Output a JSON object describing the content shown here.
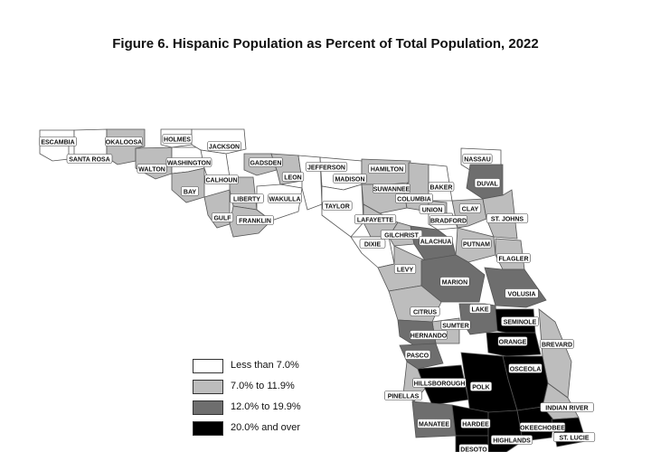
{
  "title": "Figure 6. Hispanic Population as Percent of Total Population, 2022",
  "colors": {
    "less_than_7": "#ffffff",
    "7_to_11_9": "#bdbdbd",
    "12_to_19_9": "#6e6e6e",
    "20_and_over": "#000000"
  },
  "legend": [
    {
      "label": "Less than 7.0%",
      "class": "less_than_7"
    },
    {
      "label": "7.0% to 11.9%",
      "class": "7_to_11_9"
    },
    {
      "label": "12.0% to 19.9%",
      "class": "12_to_19_9"
    },
    {
      "label": "20.0% and over",
      "class": "20_and_over"
    }
  ],
  "counties": [
    {
      "name": "ESCAMBIA",
      "class": "less_than_7"
    },
    {
      "name": "SANTA ROSA",
      "class": "less_than_7"
    },
    {
      "name": "OKALOOSA",
      "class": "7_to_11_9"
    },
    {
      "name": "WALTON",
      "class": "7_to_11_9"
    },
    {
      "name": "HOLMES",
      "class": "less_than_7"
    },
    {
      "name": "WASHINGTON",
      "class": "less_than_7"
    },
    {
      "name": "JACKSON",
      "class": "less_than_7"
    },
    {
      "name": "BAY",
      "class": "7_to_11_9"
    },
    {
      "name": "CALHOUN",
      "class": "less_than_7"
    },
    {
      "name": "GULF",
      "class": "7_to_11_9"
    },
    {
      "name": "GADSDEN",
      "class": "7_to_11_9"
    },
    {
      "name": "LIBERTY",
      "class": "7_to_11_9"
    },
    {
      "name": "FRANKLIN",
      "class": "7_to_11_9"
    },
    {
      "name": "LEON",
      "class": "7_to_11_9"
    },
    {
      "name": "WAKULLA",
      "class": "less_than_7"
    },
    {
      "name": "JEFFERSON",
      "class": "less_than_7"
    },
    {
      "name": "MADISON",
      "class": "less_than_7"
    },
    {
      "name": "TAYLOR",
      "class": "less_than_7"
    },
    {
      "name": "HAMILTON",
      "class": "7_to_11_9"
    },
    {
      "name": "SUWANNEE",
      "class": "7_to_11_9"
    },
    {
      "name": "LAFAYETTE",
      "class": "7_to_11_9"
    },
    {
      "name": "DIXIE",
      "class": "less_than_7"
    },
    {
      "name": "COLUMBIA",
      "class": "7_to_11_9"
    },
    {
      "name": "GILCHRIST",
      "class": "7_to_11_9"
    },
    {
      "name": "UNION",
      "class": "7_to_11_9"
    },
    {
      "name": "BAKER",
      "class": "less_than_7"
    },
    {
      "name": "BRADFORD",
      "class": "less_than_7"
    },
    {
      "name": "NASSAU",
      "class": "less_than_7"
    },
    {
      "name": "DUVAL",
      "class": "12_to_19_9"
    },
    {
      "name": "CLAY",
      "class": "7_to_11_9"
    },
    {
      "name": "ST. JOHNS",
      "class": "7_to_11_9"
    },
    {
      "name": "ALACHUA",
      "class": "12_to_19_9"
    },
    {
      "name": "PUTNAM",
      "class": "7_to_11_9"
    },
    {
      "name": "FLAGLER",
      "class": "7_to_11_9"
    },
    {
      "name": "LEVY",
      "class": "7_to_11_9"
    },
    {
      "name": "MARION",
      "class": "12_to_19_9"
    },
    {
      "name": "VOLUSIA",
      "class": "12_to_19_9"
    },
    {
      "name": "CITRUS",
      "class": "7_to_11_9"
    },
    {
      "name": "LAKE",
      "class": "12_to_19_9"
    },
    {
      "name": "SUMTER",
      "class": "7_to_11_9"
    },
    {
      "name": "SEMINOLE",
      "class": "20_and_over"
    },
    {
      "name": "HERNANDO",
      "class": "12_to_19_9"
    },
    {
      "name": "ORANGE",
      "class": "20_and_over"
    },
    {
      "name": "BREVARD",
      "class": "7_to_11_9"
    },
    {
      "name": "PASCO",
      "class": "12_to_19_9"
    },
    {
      "name": "OSCEOLA",
      "class": "20_and_over"
    },
    {
      "name": "PINELLAS",
      "class": "7_to_11_9"
    },
    {
      "name": "HILLSBOROUGH",
      "class": "20_and_over"
    },
    {
      "name": "POLK",
      "class": "20_and_over"
    },
    {
      "name": "INDIAN RIVER",
      "class": "7_to_11_9"
    },
    {
      "name": "MANATEE",
      "class": "12_to_19_9"
    },
    {
      "name": "HARDEE",
      "class": "20_and_over"
    },
    {
      "name": "OKEECHOBEE",
      "class": "20_and_over"
    },
    {
      "name": "HIGHLANDS",
      "class": "20_and_over"
    },
    {
      "name": "ST. LUCIE",
      "class": "20_and_over"
    },
    {
      "name": "DESOTO",
      "class": "20_and_over"
    }
  ]
}
